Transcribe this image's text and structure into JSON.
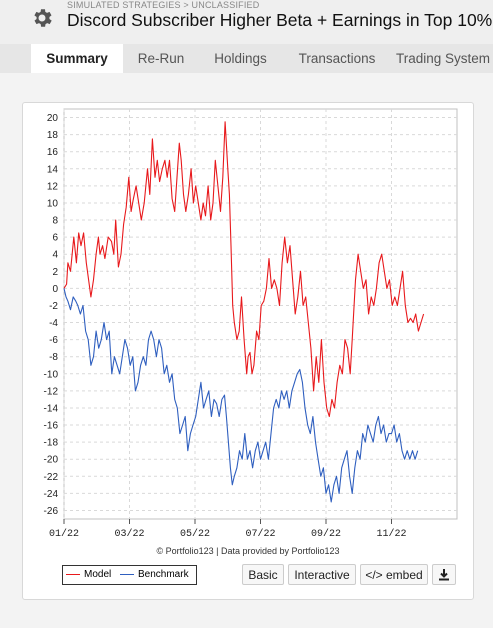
{
  "header": {
    "breadcrumb": "SIMULATED STRATEGIES > UNCLASSIFIED",
    "title": "Discord Subscriber Higher Beta + Earnings in Top 10%",
    "icon": "gear-icon"
  },
  "tabs": [
    {
      "label": "Summary",
      "active": true
    },
    {
      "label": "Re-Run",
      "active": false
    },
    {
      "label": "Holdings",
      "active": false
    },
    {
      "label": "Transactions",
      "active": false
    },
    {
      "label": "Trading System",
      "active": false
    }
  ],
  "chart_credit": "© Portfolio123 | Data provided by Portfolio123",
  "legend": {
    "model": "Model",
    "benchmark": "Benchmark"
  },
  "buttons": {
    "basic": "Basic",
    "interactive": "Interactive",
    "embed": "</> embed",
    "download_icon": "download-icon"
  },
  "colors": {
    "model": "#e8191c",
    "benchmark": "#2f5fbf",
    "grid": "#d9d9d9"
  },
  "chart_data": {
    "type": "line",
    "title": "",
    "xlabel": "",
    "ylabel": "",
    "x_ticks": [
      "01/22",
      "03/22",
      "05/22",
      "07/22",
      "09/22",
      "11/22"
    ],
    "x_range": [
      0,
      12
    ],
    "ylim": [
      -27,
      21
    ],
    "y_ticks": [
      20,
      18,
      16,
      14,
      12,
      10,
      8,
      6,
      4,
      2,
      0,
      -2,
      -4,
      -6,
      -8,
      -10,
      -12,
      -14,
      -16,
      -18,
      -20,
      -22,
      -24,
      -26
    ],
    "grid": true,
    "series": [
      {
        "name": "Model",
        "points": [
          [
            0,
            0
          ],
          [
            0.08,
            0.5
          ],
          [
            0.12,
            3
          ],
          [
            0.2,
            2
          ],
          [
            0.3,
            6
          ],
          [
            0.38,
            3
          ],
          [
            0.45,
            6.5
          ],
          [
            0.52,
            5
          ],
          [
            0.6,
            6.5
          ],
          [
            0.68,
            3
          ],
          [
            0.75,
            1
          ],
          [
            0.82,
            -1
          ],
          [
            0.9,
            1
          ],
          [
            0.98,
            4
          ],
          [
            1.05,
            6
          ],
          [
            1.1,
            4
          ],
          [
            1.18,
            5
          ],
          [
            1.25,
            3.5
          ],
          [
            1.35,
            6
          ],
          [
            1.45,
            5.5
          ],
          [
            1.52,
            4
          ],
          [
            1.58,
            8
          ],
          [
            1.66,
            2.5
          ],
          [
            1.74,
            4
          ],
          [
            1.82,
            7.5
          ],
          [
            1.9,
            9.5
          ],
          [
            1.98,
            13
          ],
          [
            2.05,
            9
          ],
          [
            2.12,
            10.5
          ],
          [
            2.2,
            12
          ],
          [
            2.28,
            10
          ],
          [
            2.36,
            8
          ],
          [
            2.45,
            10
          ],
          [
            2.55,
            14
          ],
          [
            2.62,
            11
          ],
          [
            2.7,
            17.5
          ],
          [
            2.78,
            13
          ],
          [
            2.85,
            15
          ],
          [
            2.92,
            12.5
          ],
          [
            3.0,
            14
          ],
          [
            3.08,
            15
          ],
          [
            3.15,
            13
          ],
          [
            3.22,
            15
          ],
          [
            3.3,
            10.5
          ],
          [
            3.38,
            9
          ],
          [
            3.45,
            13
          ],
          [
            3.52,
            17
          ],
          [
            3.58,
            15
          ],
          [
            3.65,
            11
          ],
          [
            3.72,
            9
          ],
          [
            3.8,
            11
          ],
          [
            3.88,
            14
          ],
          [
            3.95,
            10
          ],
          [
            4.02,
            12
          ],
          [
            4.1,
            10
          ],
          [
            4.18,
            8
          ],
          [
            4.25,
            10
          ],
          [
            4.32,
            8.5
          ],
          [
            4.4,
            12
          ],
          [
            4.48,
            8
          ],
          [
            4.55,
            10
          ],
          [
            4.62,
            15
          ],
          [
            4.7,
            12
          ],
          [
            4.78,
            9
          ],
          [
            4.85,
            13
          ],
          [
            4.92,
            19.5
          ],
          [
            5.0,
            14
          ],
          [
            5.05,
            11
          ],
          [
            5.1,
            5
          ],
          [
            5.15,
            -2
          ],
          [
            5.2,
            -4
          ],
          [
            5.28,
            -6
          ],
          [
            5.35,
            -5
          ],
          [
            5.42,
            -1
          ],
          [
            5.5,
            -6
          ],
          [
            5.58,
            -10
          ],
          [
            5.62,
            -8
          ],
          [
            5.68,
            -7.5
          ],
          [
            5.74,
            -10
          ],
          [
            5.8,
            -9
          ],
          [
            5.88,
            -5
          ],
          [
            5.95,
            -6
          ],
          [
            6.02,
            -2
          ],
          [
            6.1,
            -1.5
          ],
          [
            6.18,
            0
          ],
          [
            6.26,
            3.5
          ],
          [
            6.34,
            0
          ],
          [
            6.42,
            1
          ],
          [
            6.5,
            0
          ],
          [
            6.58,
            -2
          ],
          [
            6.66,
            3
          ],
          [
            6.74,
            6
          ],
          [
            6.82,
            3
          ],
          [
            6.9,
            5
          ],
          [
            6.98,
            1
          ],
          [
            7.06,
            -3
          ],
          [
            7.14,
            -1
          ],
          [
            7.22,
            2
          ],
          [
            7.3,
            -2
          ],
          [
            7.38,
            -1
          ],
          [
            7.46,
            -4
          ],
          [
            7.54,
            -7
          ],
          [
            7.62,
            -12
          ],
          [
            7.7,
            -8
          ],
          [
            7.78,
            -11
          ],
          [
            7.86,
            -6
          ],
          [
            7.94,
            -11
          ],
          [
            8.02,
            -14
          ],
          [
            8.1,
            -15
          ],
          [
            8.18,
            -13
          ],
          [
            8.26,
            -14
          ],
          [
            8.34,
            -11
          ],
          [
            8.42,
            -9
          ],
          [
            8.5,
            -10
          ],
          [
            8.58,
            -6
          ],
          [
            8.66,
            -7
          ],
          [
            8.74,
            -10
          ],
          [
            8.8,
            -6
          ],
          [
            8.9,
            1
          ],
          [
            8.98,
            4
          ],
          [
            9.06,
            2
          ],
          [
            9.14,
            0
          ],
          [
            9.22,
            1
          ],
          [
            9.3,
            -3
          ],
          [
            9.38,
            -1
          ],
          [
            9.46,
            -2
          ],
          [
            9.54,
            0
          ],
          [
            9.62,
            3
          ],
          [
            9.7,
            4
          ],
          [
            9.78,
            2
          ],
          [
            9.86,
            0
          ],
          [
            9.94,
            1
          ],
          [
            10.02,
            -2
          ],
          [
            10.1,
            -1
          ],
          [
            10.18,
            -2
          ],
          [
            10.26,
            0
          ],
          [
            10.34,
            2
          ],
          [
            10.42,
            -2
          ],
          [
            10.5,
            -4
          ],
          [
            10.58,
            -3.5
          ],
          [
            10.66,
            -4
          ],
          [
            10.74,
            -3
          ],
          [
            10.82,
            -5
          ],
          [
            10.9,
            -4
          ],
          [
            10.98,
            -3
          ]
        ]
      },
      {
        "name": "Benchmark",
        "points": [
          [
            0,
            0
          ],
          [
            0.06,
            -1
          ],
          [
            0.12,
            -1.5
          ],
          [
            0.2,
            -2.5
          ],
          [
            0.28,
            -1
          ],
          [
            0.36,
            -1.5
          ],
          [
            0.42,
            -2
          ],
          [
            0.5,
            -3
          ],
          [
            0.58,
            -2
          ],
          [
            0.66,
            -5
          ],
          [
            0.74,
            -6
          ],
          [
            0.82,
            -9
          ],
          [
            0.9,
            -8
          ],
          [
            0.98,
            -5
          ],
          [
            1.06,
            -7
          ],
          [
            1.14,
            -6
          ],
          [
            1.22,
            -4
          ],
          [
            1.3,
            -6
          ],
          [
            1.38,
            -5
          ],
          [
            1.46,
            -10
          ],
          [
            1.54,
            -8
          ],
          [
            1.62,
            -9
          ],
          [
            1.7,
            -10
          ],
          [
            1.78,
            -8
          ],
          [
            1.86,
            -6
          ],
          [
            1.94,
            -7
          ],
          [
            2.02,
            -9
          ],
          [
            2.1,
            -8
          ],
          [
            2.18,
            -12
          ],
          [
            2.26,
            -11
          ],
          [
            2.34,
            -9
          ],
          [
            2.42,
            -8
          ],
          [
            2.5,
            -9
          ],
          [
            2.58,
            -6
          ],
          [
            2.66,
            -5
          ],
          [
            2.74,
            -6
          ],
          [
            2.82,
            -8
          ],
          [
            2.9,
            -6
          ],
          [
            2.98,
            -7
          ],
          [
            3.06,
            -10
          ],
          [
            3.14,
            -9
          ],
          [
            3.22,
            -11
          ],
          [
            3.3,
            -10
          ],
          [
            3.38,
            -13
          ],
          [
            3.46,
            -14
          ],
          [
            3.54,
            -17
          ],
          [
            3.62,
            -16
          ],
          [
            3.7,
            -15
          ],
          [
            3.78,
            -19
          ],
          [
            3.86,
            -17
          ],
          [
            3.94,
            -16
          ],
          [
            4.02,
            -15
          ],
          [
            4.1,
            -13
          ],
          [
            4.18,
            -11
          ],
          [
            4.26,
            -14
          ],
          [
            4.34,
            -13
          ],
          [
            4.42,
            -12
          ],
          [
            4.5,
            -15
          ],
          [
            4.58,
            -13
          ],
          [
            4.66,
            -13.5
          ],
          [
            4.74,
            -15
          ],
          [
            4.82,
            -13
          ],
          [
            4.9,
            -12.5
          ],
          [
            4.96,
            -15
          ],
          [
            5.02,
            -18
          ],
          [
            5.08,
            -21
          ],
          [
            5.14,
            -23
          ],
          [
            5.2,
            -22
          ],
          [
            5.28,
            -21
          ],
          [
            5.36,
            -19
          ],
          [
            5.44,
            -20
          ],
          [
            5.52,
            -17
          ],
          [
            5.6,
            -20
          ],
          [
            5.68,
            -19
          ],
          [
            5.76,
            -21
          ],
          [
            5.84,
            -19
          ],
          [
            5.92,
            -18
          ],
          [
            6.0,
            -20
          ],
          [
            6.08,
            -19
          ],
          [
            6.16,
            -18
          ],
          [
            6.24,
            -20
          ],
          [
            6.32,
            -17
          ],
          [
            6.4,
            -14
          ],
          [
            6.48,
            -13
          ],
          [
            6.56,
            -14
          ],
          [
            6.64,
            -12
          ],
          [
            6.72,
            -13
          ],
          [
            6.8,
            -12
          ],
          [
            6.88,
            -14
          ],
          [
            6.96,
            -12
          ],
          [
            7.04,
            -11
          ],
          [
            7.12,
            -10
          ],
          [
            7.2,
            -9.5
          ],
          [
            7.28,
            -11
          ],
          [
            7.36,
            -14
          ],
          [
            7.44,
            -16
          ],
          [
            7.52,
            -17
          ],
          [
            7.6,
            -15
          ],
          [
            7.68,
            -18
          ],
          [
            7.76,
            -20
          ],
          [
            7.84,
            -22
          ],
          [
            7.92,
            -21
          ],
          [
            8.0,
            -24
          ],
          [
            8.08,
            -23
          ],
          [
            8.16,
            -25
          ],
          [
            8.24,
            -23
          ],
          [
            8.32,
            -22
          ],
          [
            8.4,
            -24
          ],
          [
            8.48,
            -21
          ],
          [
            8.56,
            -20
          ],
          [
            8.64,
            -19
          ],
          [
            8.72,
            -22
          ],
          [
            8.8,
            -24
          ],
          [
            8.88,
            -21
          ],
          [
            8.96,
            -19
          ],
          [
            9.04,
            -20
          ],
          [
            9.12,
            -17
          ],
          [
            9.2,
            -18
          ],
          [
            9.28,
            -16
          ],
          [
            9.36,
            -17
          ],
          [
            9.44,
            -18
          ],
          [
            9.52,
            -16
          ],
          [
            9.6,
            -15
          ],
          [
            9.68,
            -17
          ],
          [
            9.76,
            -16
          ],
          [
            9.84,
            -18
          ],
          [
            9.92,
            -17
          ],
          [
            10.0,
            -17
          ],
          [
            10.08,
            -16
          ],
          [
            10.16,
            -18
          ],
          [
            10.24,
            -17
          ],
          [
            10.32,
            -19
          ],
          [
            10.4,
            -20
          ],
          [
            10.48,
            -19
          ],
          [
            10.56,
            -20
          ],
          [
            10.64,
            -19
          ],
          [
            10.72,
            -20
          ],
          [
            10.8,
            -19
          ]
        ]
      }
    ]
  }
}
